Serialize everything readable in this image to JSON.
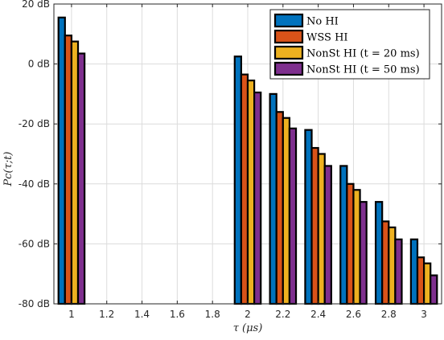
{
  "chart_data": {
    "type": "bar",
    "xlabel": "τ (μs)",
    "ylabel": "Pc(τ;t)",
    "ylim": [
      -80,
      20
    ],
    "yticks": [
      20,
      0,
      -20,
      -40,
      -60,
      -80
    ],
    "ytick_labels": [
      "20 dB",
      "0 dB",
      "-20 dB",
      "-40 dB",
      "-60 dB",
      "-80 dB"
    ],
    "xlim": [
      0.9,
      3.1
    ],
    "xticks": [
      1,
      1.2,
      1.4,
      1.6,
      1.8,
      2,
      2.2,
      2.4,
      2.6,
      2.8,
      3
    ],
    "xtick_labels": [
      "1",
      "1.2",
      "1.4",
      "1.6",
      "1.8",
      "2",
      "2.2",
      "2.4",
      "2.6",
      "2.8",
      "3"
    ],
    "categories": [
      1,
      2,
      2.2,
      2.4,
      2.6,
      2.8,
      3
    ],
    "grid": true,
    "legend_position": "top-right",
    "series": [
      {
        "name": "No HI",
        "color": "#0072BD",
        "values": [
          15.5,
          2.5,
          -10,
          -22,
          -34,
          -46,
          -58.5
        ]
      },
      {
        "name": "WSS HI",
        "color": "#D95319",
        "values": [
          9.5,
          -3.5,
          -16,
          -28,
          -40,
          -52.5,
          -64.5
        ]
      },
      {
        "name": "NonSt HI (t = 20 ms)",
        "color": "#EDB120",
        "values": [
          7.5,
          -5.5,
          -18,
          -30,
          -42,
          -54.5,
          -66.5
        ]
      },
      {
        "name": "NonSt HI (t = 50 ms)",
        "color": "#7E2F8E",
        "values": [
          3.5,
          -9.5,
          -21.5,
          -34,
          -46,
          -58.5,
          -70.5
        ]
      }
    ]
  }
}
